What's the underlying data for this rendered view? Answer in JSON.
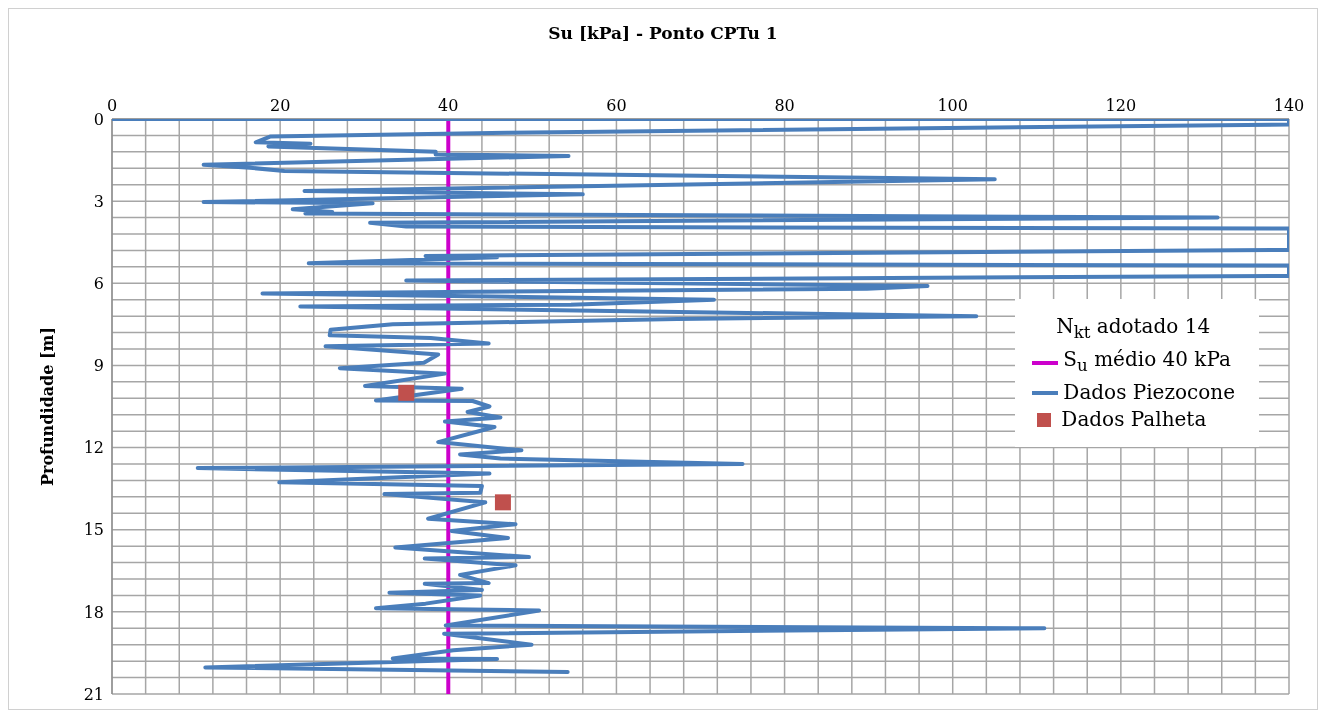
{
  "chart_data": {
    "type": "line",
    "title": "Su [kPa] - Ponto CPTu  1",
    "ylabel": "Profundidade [m]",
    "legend_title": "N$_{kt}$ adotado 14",
    "legend": "right",
    "grid": true,
    "xlim": [
      0,
      140
    ],
    "ylim": [
      21,
      0
    ],
    "xticks": [
      0,
      {
        "value": 4,
        "label": null
      },
      {
        "value": 8,
        "label": null
      },
      {
        "value": 12,
        "label": null
      },
      {
        "value": 16,
        "label": null
      },
      20,
      {
        "value": 24,
        "label": null
      },
      {
        "value": 28,
        "label": null
      },
      {
        "value": 32,
        "label": null
      },
      {
        "value": 36,
        "label": null
      },
      40,
      {
        "value": 44,
        "label": null
      },
      {
        "value": 48,
        "label": null
      },
      {
        "value": 52,
        "label": null
      },
      {
        "value": 56,
        "label": null
      },
      60,
      {
        "value": 64,
        "label": null
      },
      {
        "value": 68,
        "label": null
      },
      {
        "value": 72,
        "label": null
      },
      {
        "value": 76,
        "label": null
      },
      80,
      {
        "value": 84,
        "label": null
      },
      {
        "value": 88,
        "label": null
      },
      {
        "value": 92,
        "label": null
      },
      {
        "value": 96,
        "label": null
      },
      100,
      {
        "value": 104,
        "label": null
      },
      {
        "value": 108,
        "label": null
      },
      {
        "value": 112,
        "label": null
      },
      {
        "value": 116,
        "label": null
      },
      120,
      {
        "value": 124,
        "label": null
      },
      {
        "value": 128,
        "label": null
      },
      {
        "value": 132,
        "label": null
      },
      {
        "value": 136,
        "label": null
      },
      140
    ],
    "yticks": [
      0,
      {
        "value": 0.6,
        "label": null
      },
      {
        "value": 1.2,
        "label": null
      },
      {
        "value": 1.8,
        "label": null
      },
      {
        "value": 2.4,
        "label": null
      },
      3,
      {
        "value": 3.6,
        "label": null
      },
      {
        "value": 4.2,
        "label": null
      },
      {
        "value": 4.8,
        "label": null
      },
      {
        "value": 5.4,
        "label": null
      },
      6,
      {
        "value": 6.6,
        "label": null
      },
      {
        "value": 7.2,
        "label": null
      },
      {
        "value": 7.8,
        "label": null
      },
      {
        "value": 8.4,
        "label": null
      },
      9,
      {
        "value": 9.6,
        "label": null
      },
      {
        "value": 10.2,
        "label": null
      },
      {
        "value": 10.8,
        "label": null
      },
      {
        "value": 11.4,
        "label": null
      },
      12,
      {
        "value": 12.6,
        "label": null
      },
      {
        "value": 13.2,
        "label": null
      },
      {
        "value": 13.8,
        "label": null
      },
      {
        "value": 14.4,
        "label": null
      },
      15,
      {
        "value": 15.6,
        "label": null
      },
      {
        "value": 16.2,
        "label": null
      },
      {
        "value": 16.8,
        "label": null
      },
      {
        "value": 17.4,
        "label": null
      },
      18,
      {
        "value": 18.6,
        "label": null
      },
      {
        "value": 19.2,
        "label": null
      },
      {
        "value": 19.8,
        "label": null
      },
      {
        "value": 20.4,
        "label": null
      },
      21
    ],
    "series": [
      {
        "name": "S$_{u}$ médio 40 kPa",
        "type": "line",
        "color": "#cc00cc",
        "marker": "none",
        "x": [
          40,
          40
        ],
        "values": [
          0,
          21
        ]
      },
      {
        "name": "Dados Piezocone",
        "type": "line",
        "color": "#4a7ebb",
        "marker": "none",
        "x": [
          0,
          140,
          140,
          47,
          18.8,
          17.1,
          23.6,
          18.6,
          38.5,
          38.5,
          54.3,
          10.9,
          16.4,
          20.5,
          105,
          22.9,
          56,
          10.9,
          31,
          21.5,
          26.2,
          23,
          131.5,
          30.7,
          35,
          140,
          140,
          37.3,
          45.8,
          23.4,
          140,
          140,
          35,
          97,
          89.8,
          17.9,
          71.6,
          54.6,
          22.4,
          102.8,
          67.2,
          33.4,
          26,
          25.9,
          37.9,
          44.8,
          25.4,
          38.8,
          37.1,
          27.1,
          39.6,
          30.1,
          41.6,
          31.4,
          42.9,
          44.9,
          42.3,
          46.2,
          39.6,
          45.5,
          38.8,
          48.7,
          41.4,
          46.2,
          75,
          10.2,
          44.9,
          19.9,
          44,
          43.8,
          32.4,
          44.4,
          37.6,
          48,
          40.4,
          47.1,
          33.7,
          49.6,
          37.2,
          48,
          41.4,
          44.8,
          37.2,
          44,
          33,
          43.8,
          37.3,
          31.4,
          50.8,
          39.7,
          110.9,
          39.5,
          49.9,
          40.6,
          33.4,
          45.8,
          11.1,
          54.2
        ],
        "values": [
          0,
          0,
          0.2,
          0.5,
          0.64,
          0.85,
          0.9,
          1,
          1.2,
          1.3,
          1.35,
          1.67,
          1.78,
          1.9,
          2.2,
          2.63,
          2.75,
          3.03,
          3.08,
          3.3,
          3.4,
          3.45,
          3.6,
          3.79,
          3.93,
          4,
          4.78,
          5,
          5.05,
          5.27,
          5.35,
          5.73,
          5.9,
          6.1,
          6.2,
          6.37,
          6.6,
          6.78,
          6.85,
          7.2,
          7.3,
          7.5,
          7.7,
          7.9,
          8,
          8.2,
          8.3,
          8.6,
          8.9,
          9.1,
          9.3,
          9.75,
          9.85,
          10.28,
          10.3,
          10.5,
          10.7,
          10.9,
          11.05,
          11.25,
          11.8,
          12.1,
          12.25,
          12.4,
          12.6,
          12.75,
          12.95,
          13.27,
          13.4,
          13.65,
          13.7,
          14,
          14.6,
          14.8,
          15.05,
          15.3,
          15.65,
          16,
          16.05,
          16.3,
          16.65,
          16.95,
          16.97,
          17.2,
          17.3,
          17.4,
          17.7,
          17.87,
          17.95,
          18.5,
          18.6,
          18.8,
          19.2,
          19.4,
          19.7,
          19.72,
          20.03,
          20.2
        ]
      },
      {
        "name": "Dados Palheta",
        "type": "scatter",
        "color": "#c0504d",
        "marker": "square",
        "x": [
          35,
          46.5
        ],
        "values": [
          10,
          14
        ]
      }
    ]
  }
}
